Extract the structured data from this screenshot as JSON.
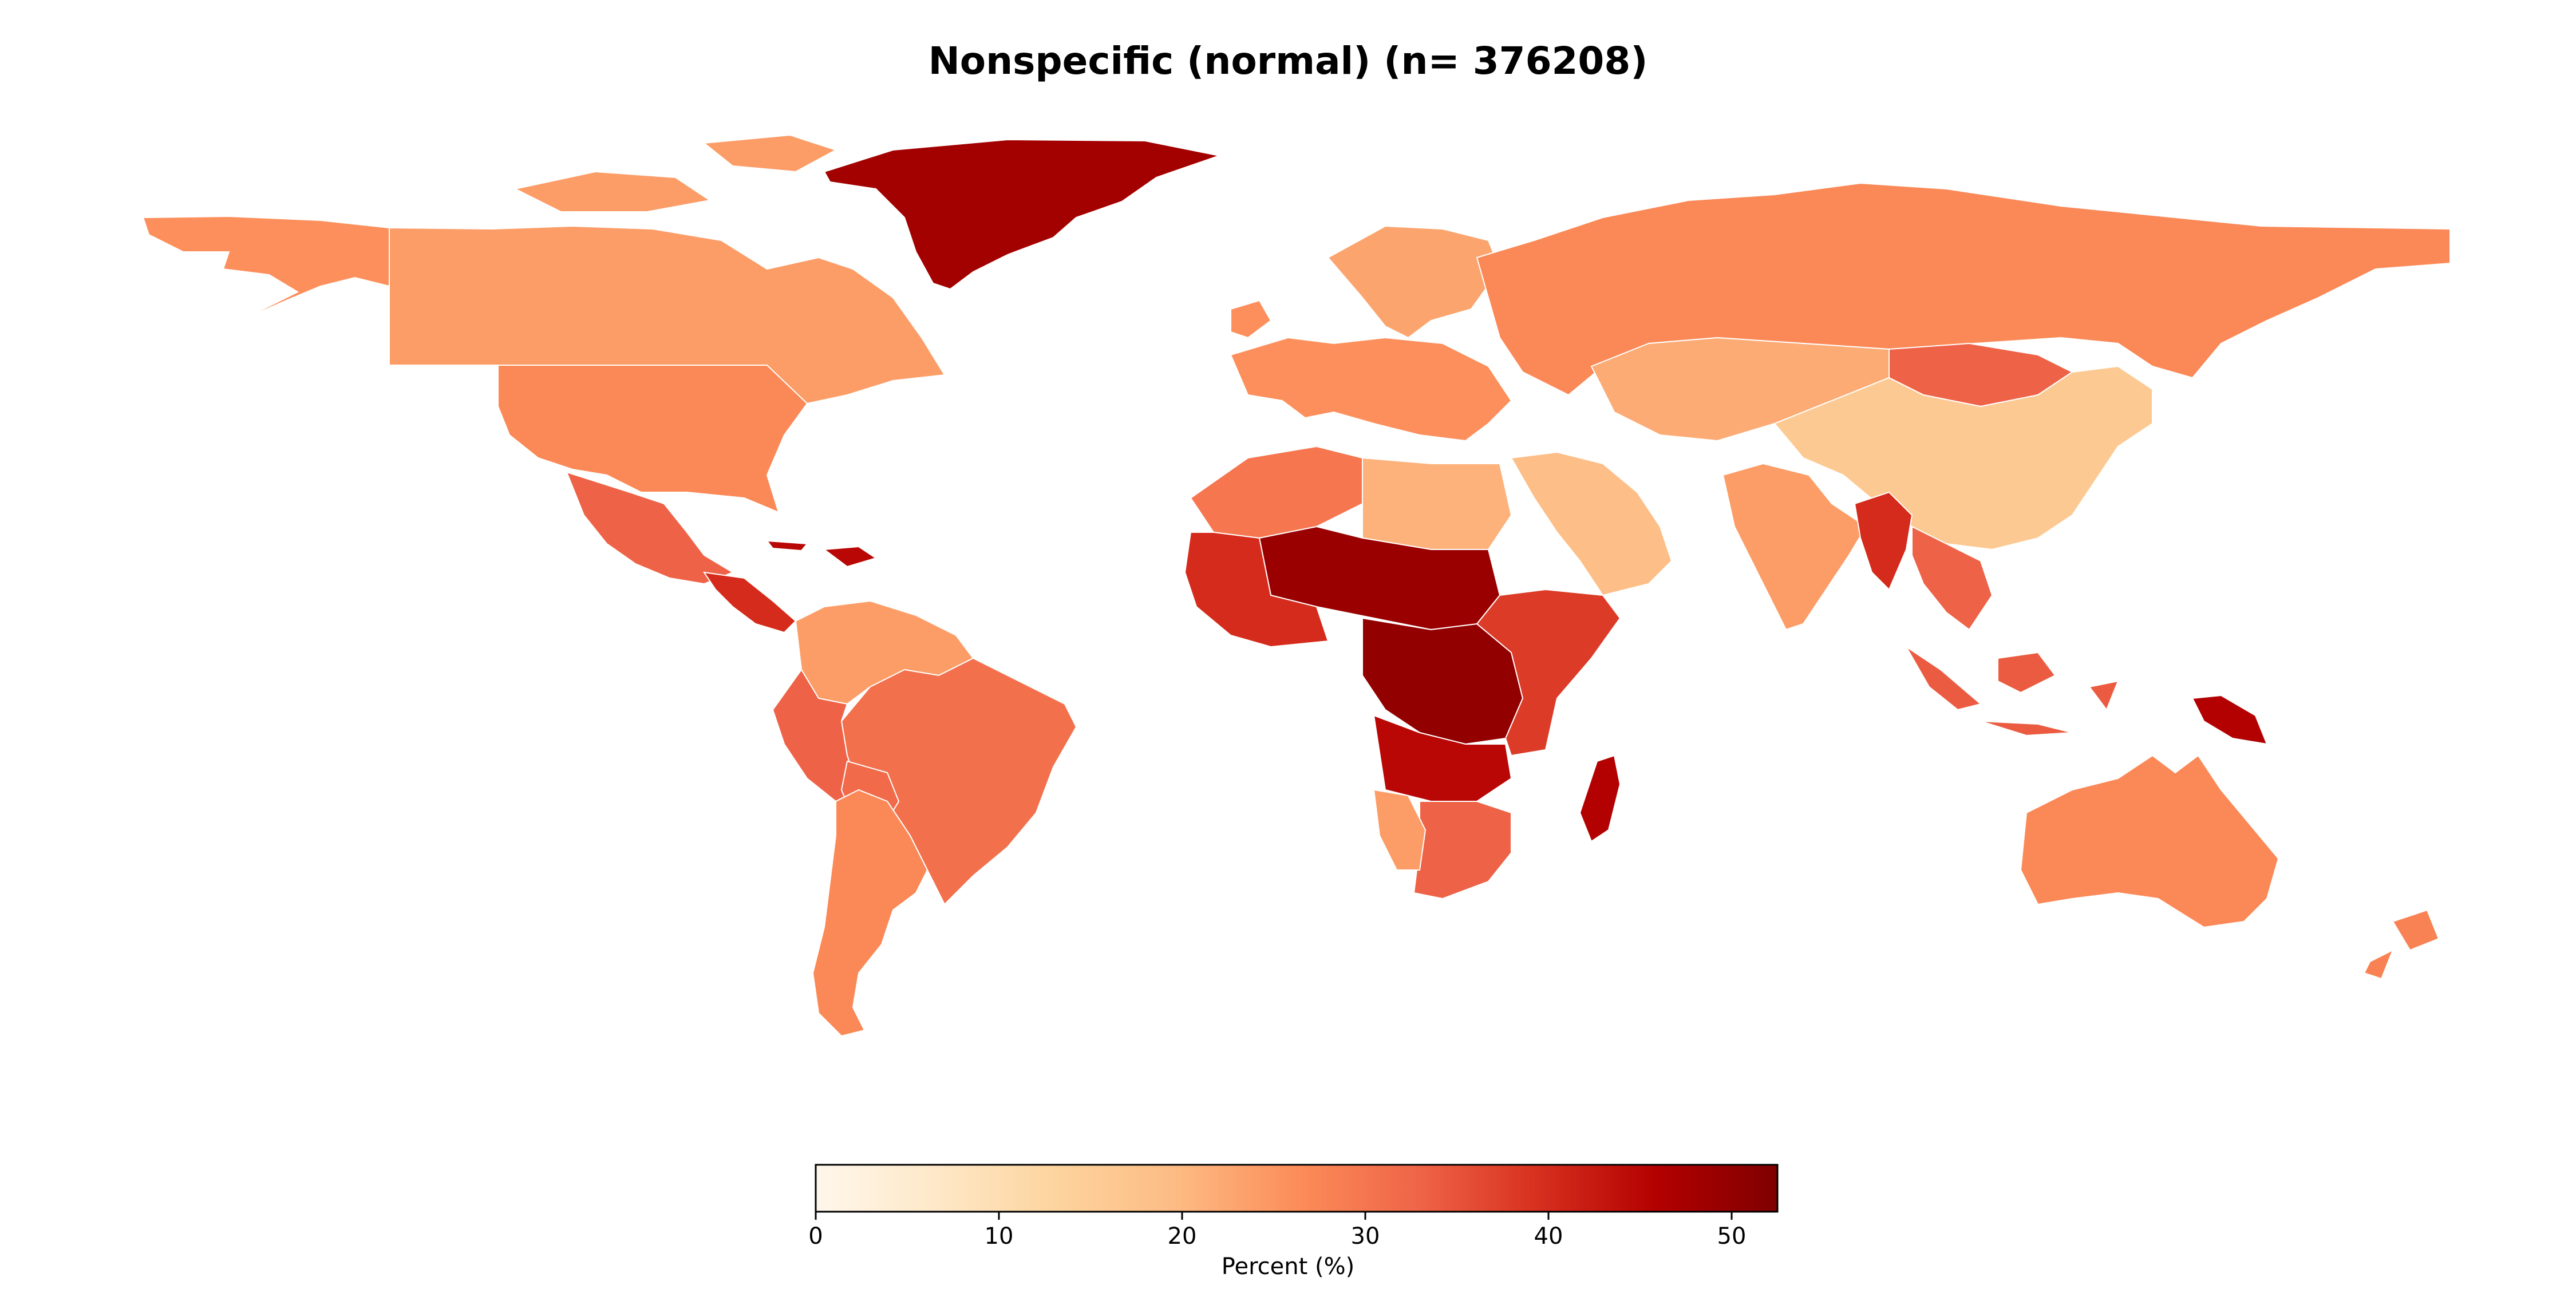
{
  "title": "Nonspecific (normal) (n= 376208)",
  "colorbar": {
    "label": "Percent (%)",
    "min": 0,
    "max": 52.5,
    "ticks": [
      0,
      10,
      20,
      30,
      40,
      50
    ],
    "colormap": "OrRd",
    "stops": [
      "#fff7ec",
      "#fee8c8",
      "#fdd49e",
      "#fdbb84",
      "#fc8d59",
      "#ef6548",
      "#d7301f",
      "#b30000",
      "#7f0000"
    ]
  },
  "map_data": {
    "projection": "equirectangular",
    "metric": "Percent (%)",
    "regions": [
      {
        "name": "Greenland",
        "value": 48
      },
      {
        "name": "Canada",
        "value": 24
      },
      {
        "name": "United States",
        "value": 27
      },
      {
        "name": "Alaska",
        "value": 26
      },
      {
        "name": "Mexico",
        "value": 33
      },
      {
        "name": "Central America",
        "value": 40
      },
      {
        "name": "Caribbean",
        "value": 45
      },
      {
        "name": "Colombia / Venezuela",
        "value": 24
      },
      {
        "name": "Brazil",
        "value": 31
      },
      {
        "name": "Peru",
        "value": 33
      },
      {
        "name": "Bolivia",
        "value": 32
      },
      {
        "name": "Argentina / Chile",
        "value": 27
      },
      {
        "name": "Western Europe",
        "value": 26
      },
      {
        "name": "Scandinavia",
        "value": 23
      },
      {
        "name": "Russia",
        "value": 27
      },
      {
        "name": "Mongolia",
        "value": 33
      },
      {
        "name": "Central Asia",
        "value": 22
      },
      {
        "name": "China",
        "value": 16
      },
      {
        "name": "India",
        "value": 24
      },
      {
        "name": "Middle East",
        "value": 19
      },
      {
        "name": "Myanmar",
        "value": 40
      },
      {
        "name": "Southeast Asia",
        "value": 33
      },
      {
        "name": "Indonesia",
        "value": 34
      },
      {
        "name": "Papua New Guinea",
        "value": 46
      },
      {
        "name": "Australia",
        "value": 27
      },
      {
        "name": "New Zealand",
        "value": 28
      },
      {
        "name": "North Africa",
        "value": 30
      },
      {
        "name": "Egypt / Libya",
        "value": 21
      },
      {
        "name": "Sahel",
        "value": 49
      },
      {
        "name": "West Africa",
        "value": 40
      },
      {
        "name": "Central Africa",
        "value": 50
      },
      {
        "name": "East Africa",
        "value": 38
      },
      {
        "name": "Angola / Zambia",
        "value": 45
      },
      {
        "name": "Southern Africa",
        "value": 33
      },
      {
        "name": "Namibia",
        "value": 24
      },
      {
        "name": "Madagascar",
        "value": 46
      }
    ]
  }
}
